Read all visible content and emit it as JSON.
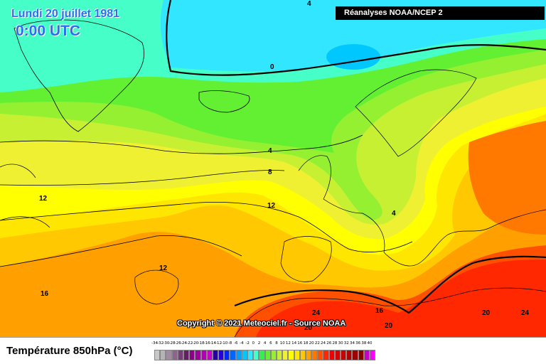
{
  "header": {
    "date": "Lundi 20 juillet 1981",
    "time": "0:00 UTC",
    "source": "Réanalyses NOAA/NCEP 2"
  },
  "copyright": "Copyright © 2021 Meteociel.fr - Source NOAA",
  "legend": {
    "title": "Température 850hPa (°C)",
    "ticks": [
      "-34",
      "-32",
      "-30",
      "-28",
      "-26",
      "-24",
      "-22",
      "-20",
      "-18",
      "-16",
      "-14",
      "-12",
      "-10",
      "-8",
      "-6",
      "-4",
      "-2",
      "0",
      "2",
      "4",
      "6",
      "8",
      "10",
      "12",
      "14",
      "16",
      "18",
      "20",
      "22",
      "24",
      "26",
      "28",
      "30",
      "32",
      "34",
      "36",
      "38",
      "40"
    ],
    "colors": [
      "#c8c8c8",
      "#b4b4b4",
      "#a08ca0",
      "#8c648c",
      "#783c78",
      "#641e64",
      "#8c008c",
      "#a000a0",
      "#b400b4",
      "#c800c8",
      "#2800a0",
      "#2800dc",
      "#0028ff",
      "#0064ff",
      "#00a0ff",
      "#00c8ff",
      "#32e6ff",
      "#46ffc8",
      "#32f050",
      "#64f032",
      "#96f032",
      "#c8f032",
      "#f0f032",
      "#ffff00",
      "#ffe600",
      "#ffc800",
      "#ffa000",
      "#ff7800",
      "#ff5000",
      "#ff2800",
      "#f00000",
      "#dc0000",
      "#c80000",
      "#b40000",
      "#a00000",
      "#8c0000",
      "#c800c8",
      "#ff00ff"
    ]
  },
  "map": {
    "isotherm_labels": [
      "4",
      "0",
      "4",
      "8",
      "12",
      "12",
      "4",
      "12",
      "16",
      "24",
      "16",
      "20",
      "20",
      "24",
      "20"
    ]
  }
}
